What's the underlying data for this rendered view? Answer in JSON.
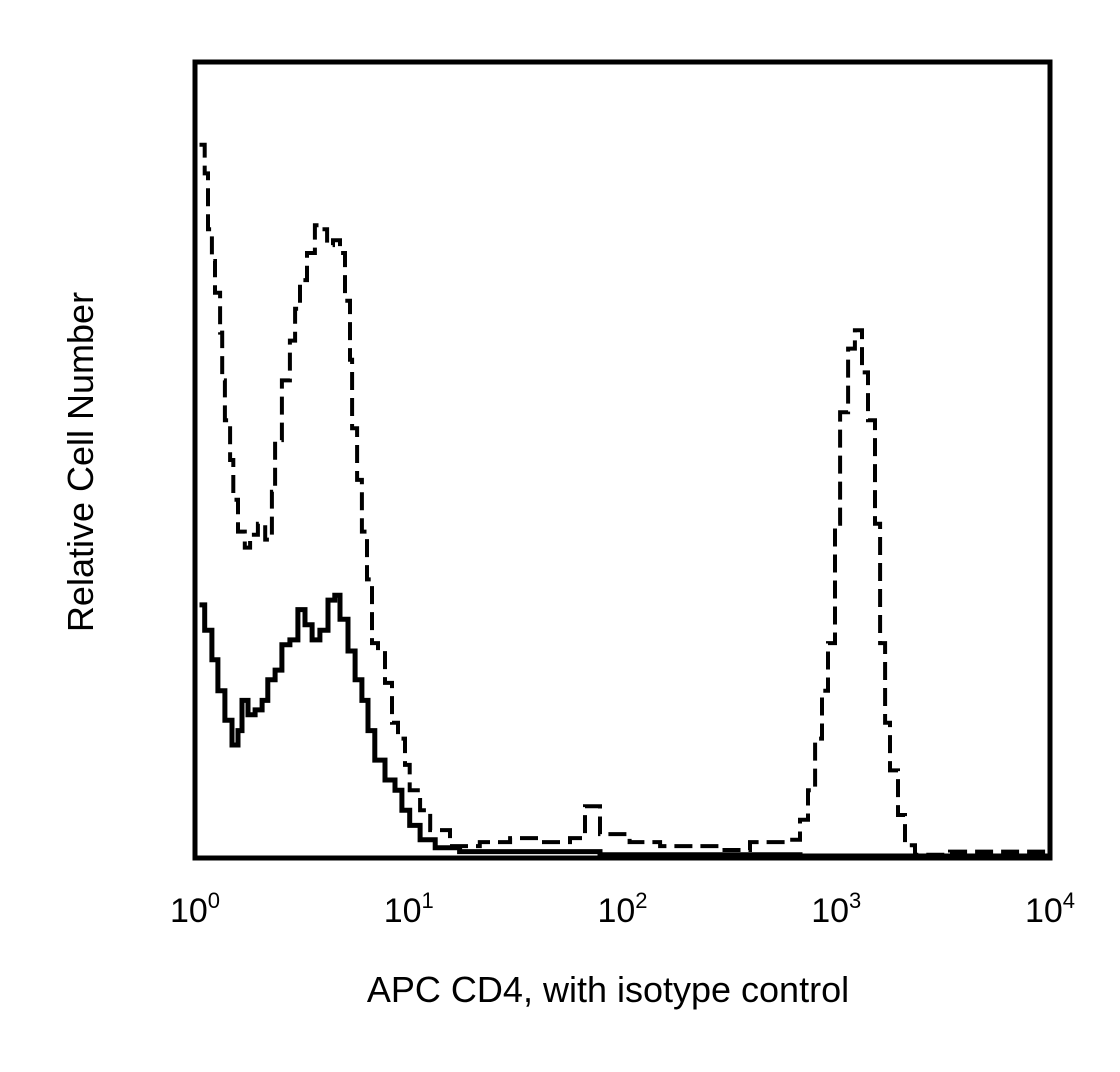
{
  "chart_data": {
    "type": "line",
    "title": "",
    "xlabel": "APC CD4, with isotype control",
    "ylabel": "Relative Cell Number",
    "xscale": "log",
    "xlim": [
      1,
      10000
    ],
    "ylim": [
      0,
      100
    ],
    "grid": false,
    "legend": "none",
    "x_ticks": [
      {
        "value": 1,
        "base": "10",
        "exp": "0"
      },
      {
        "value": 10,
        "base": "10",
        "exp": "1"
      },
      {
        "value": 100,
        "base": "10",
        "exp": "2"
      },
      {
        "value": 1000,
        "base": "10",
        "exp": "3"
      },
      {
        "value": 10000,
        "base": "10",
        "exp": "4"
      }
    ],
    "series": [
      {
        "style": "dashed",
        "color": "#000000",
        "points": [
          [
            1.05,
            89.6
          ],
          [
            1.11,
            86
          ],
          [
            1.15,
            79
          ],
          [
            1.2,
            75
          ],
          [
            1.24,
            71
          ],
          [
            1.31,
            66
          ],
          [
            1.34,
            60
          ],
          [
            1.38,
            55
          ],
          [
            1.46,
            50
          ],
          [
            1.51,
            45
          ],
          [
            1.59,
            41
          ],
          [
            1.71,
            39
          ],
          [
            1.81,
            40.6
          ],
          [
            1.97,
            42
          ],
          [
            2.13,
            40
          ],
          [
            2.29,
            46
          ],
          [
            2.37,
            52.5
          ],
          [
            2.55,
            60
          ],
          [
            2.78,
            65
          ],
          [
            2.94,
            69
          ],
          [
            3.1,
            72.6
          ],
          [
            3.34,
            76
          ],
          [
            3.64,
            79.5
          ],
          [
            3.93,
            79
          ],
          [
            4.15,
            77
          ],
          [
            4.42,
            77.6
          ],
          [
            4.77,
            76
          ],
          [
            5.03,
            70
          ],
          [
            5.31,
            62.6
          ],
          [
            5.43,
            54
          ],
          [
            5.73,
            47.5
          ],
          [
            6.04,
            41
          ],
          [
            6.38,
            35
          ],
          [
            6.73,
            27
          ],
          [
            7.18,
            26
          ],
          [
            7.74,
            22
          ],
          [
            8.35,
            17
          ],
          [
            8.91,
            15
          ],
          [
            9.6,
            11.7
          ],
          [
            10.1,
            8.5
          ],
          [
            11.3,
            6
          ],
          [
            12.6,
            3.5
          ],
          [
            15.6,
            1.5
          ],
          [
            21.5,
            2
          ],
          [
            29.8,
            2.5
          ],
          [
            41.1,
            2
          ],
          [
            56.8,
            2.5
          ],
          [
            66.8,
            6.5
          ],
          [
            78.5,
            3
          ],
          [
            108,
            2
          ],
          [
            150,
            1.5
          ],
          [
            207,
            1.5
          ],
          [
            286,
            1
          ],
          [
            395,
            2
          ],
          [
            546,
            2
          ],
          [
            608,
            2.3
          ],
          [
            677,
            4.8
          ],
          [
            738,
            8.5
          ],
          [
            796,
            15
          ],
          [
            858,
            21
          ],
          [
            915,
            27
          ],
          [
            987,
            42
          ],
          [
            1042,
            56
          ],
          [
            1136,
            64
          ],
          [
            1223,
            66.3
          ],
          [
            1319,
            61
          ],
          [
            1408,
            55
          ],
          [
            1518,
            42
          ],
          [
            1603,
            27
          ],
          [
            1692,
            17
          ],
          [
            1784,
            11
          ],
          [
            1944,
            5.4
          ],
          [
            2098,
            1.6
          ],
          [
            2335,
            0.4
          ],
          [
            3405,
            0.8
          ],
          [
            10000,
            0.2
          ]
        ]
      },
      {
        "style": "solid",
        "color": "#000000",
        "points": [
          [
            1.05,
            31.8
          ],
          [
            1.11,
            28.6
          ],
          [
            1.2,
            24.9
          ],
          [
            1.28,
            21
          ],
          [
            1.38,
            17.3
          ],
          [
            1.49,
            14.2
          ],
          [
            1.59,
            16
          ],
          [
            1.66,
            19.8
          ],
          [
            1.77,
            18
          ],
          [
            1.91,
            18.6
          ],
          [
            2.06,
            19.8
          ],
          [
            2.19,
            22.4
          ],
          [
            2.37,
            23.6
          ],
          [
            2.55,
            26.8
          ],
          [
            2.78,
            27.4
          ],
          [
            3.03,
            31.2
          ],
          [
            3.27,
            29.3
          ],
          [
            3.53,
            27.4
          ],
          [
            3.84,
            28.6
          ],
          [
            4.19,
            32.4
          ],
          [
            4.51,
            33
          ],
          [
            4.77,
            30
          ],
          [
            5.2,
            26
          ],
          [
            5.61,
            22.4
          ],
          [
            6.04,
            19.8
          ],
          [
            6.45,
            16
          ],
          [
            6.94,
            12.3
          ],
          [
            7.74,
            9.8
          ],
          [
            8.62,
            8.5
          ],
          [
            9.29,
            6
          ],
          [
            10.1,
            4.1
          ],
          [
            11.3,
            2.3
          ],
          [
            13.3,
            1.3
          ],
          [
            17.3,
            0.8
          ],
          [
            78.5,
            0.4
          ],
          [
            677,
            0.25
          ],
          [
            10000,
            0.2
          ]
        ]
      }
    ]
  }
}
